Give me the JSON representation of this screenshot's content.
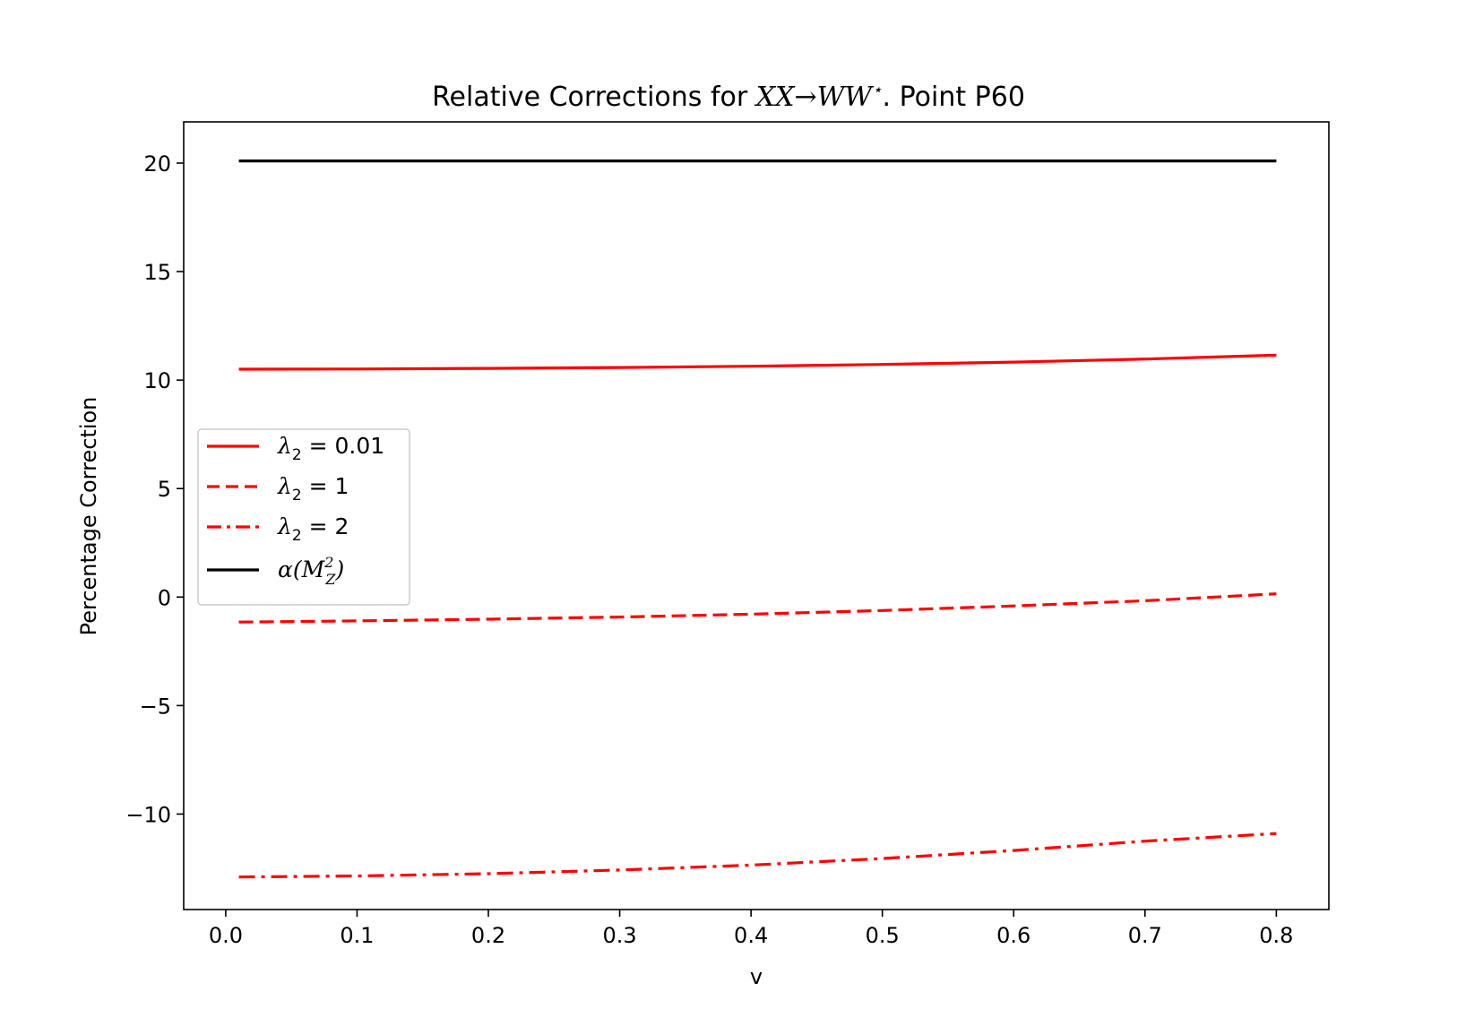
{
  "chart_data": {
    "type": "line",
    "title": {
      "prefix": "Relative Corrections for ",
      "process": "XX→WW",
      "star": "⋆",
      "suffix": ". Point P60"
    },
    "xlabel": "v",
    "ylabel": "Percentage Correction",
    "xlim": [
      -0.032,
      0.84
    ],
    "ylim": [
      -14.4,
      21.9
    ],
    "xticks": [
      0.0,
      0.1,
      0.2,
      0.3,
      0.4,
      0.5,
      0.6,
      0.7,
      0.8
    ],
    "xtick_labels": [
      "0.0",
      "0.1",
      "0.2",
      "0.3",
      "0.4",
      "0.5",
      "0.6",
      "0.7",
      "0.8"
    ],
    "yticks": [
      20,
      15,
      10,
      5,
      0,
      -5,
      -10
    ],
    "ytick_labels": [
      "20",
      "15",
      "10",
      "5",
      "0",
      "−5",
      "−10"
    ],
    "grid": false,
    "legend_position": "center-left",
    "series": [
      {
        "name": "λ2 = 0.01",
        "legend": {
          "sym": "λ",
          "sub": "2",
          "rest": " = 0.01"
        },
        "color": "#ff0000",
        "style": "solid",
        "x": [
          0.01,
          0.1,
          0.2,
          0.3,
          0.4,
          0.5,
          0.6,
          0.7,
          0.8
        ],
        "y": [
          10.5,
          10.51,
          10.54,
          10.58,
          10.64,
          10.72,
          10.83,
          10.97,
          11.15
        ]
      },
      {
        "name": "λ2 = 1",
        "legend": {
          "sym": "λ",
          "sub": "2",
          "rest": " = 1"
        },
        "color": "#ff0000",
        "style": "dashed",
        "x": [
          0.01,
          0.1,
          0.2,
          0.3,
          0.4,
          0.5,
          0.6,
          0.7,
          0.8
        ],
        "y": [
          -1.15,
          -1.1,
          -1.02,
          -0.92,
          -0.79,
          -0.62,
          -0.41,
          -0.17,
          0.15
        ]
      },
      {
        "name": "λ2 = 2",
        "legend": {
          "sym": "λ",
          "sub": "2",
          "rest": " = 2"
        },
        "color": "#ff0000",
        "style": "dashdot",
        "x": [
          0.01,
          0.1,
          0.2,
          0.3,
          0.4,
          0.5,
          0.6,
          0.7,
          0.8
        ],
        "y": [
          -12.9,
          -12.85,
          -12.75,
          -12.58,
          -12.35,
          -12.05,
          -11.68,
          -11.25,
          -10.9
        ]
      },
      {
        "name": "α(MZ2)",
        "legend": {
          "sym": "α(M",
          "sub": "Z",
          "sup": "2",
          "rest": ")"
        },
        "color": "#000000",
        "style": "solid",
        "x": [
          0.01,
          0.8
        ],
        "y": [
          20.1,
          20.1
        ]
      }
    ]
  }
}
